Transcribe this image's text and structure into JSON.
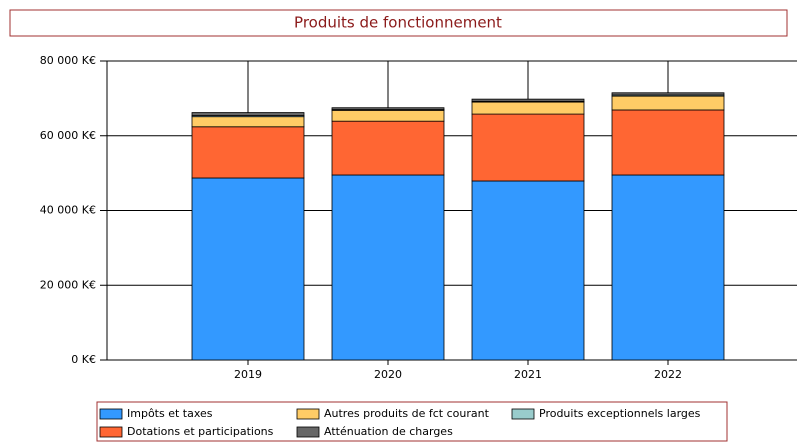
{
  "chart_data": {
    "type": "stacked_bar",
    "title": "Produits de fonctionnement",
    "categories": [
      "2019",
      "2020",
      "2021",
      "2022"
    ],
    "series": [
      {
        "name": "Impôts et taxes",
        "color": "#3399ff",
        "values": [
          48700,
          49500,
          47900,
          49500
        ]
      },
      {
        "name": "Dotations et participations",
        "color": "#ff6633",
        "values": [
          13700,
          14400,
          17900,
          17400
        ]
      },
      {
        "name": "Autres produits de fct courant",
        "color": "#ffcc66",
        "values": [
          2700,
          2900,
          3200,
          3700
        ]
      },
      {
        "name": "Produits exceptionnels larges",
        "color": "#99cccc",
        "values": [
          300,
          200,
          200,
          300
        ]
      },
      {
        "name": "Atténuation de charges",
        "color": "#666666",
        "values": [
          800,
          500,
          600,
          600
        ]
      }
    ],
    "ylim": [
      0,
      80000
    ],
    "yticks": [
      {
        "value": 0,
        "label": "0 K€"
      },
      {
        "value": 20000,
        "label": "20 000 K€"
      },
      {
        "value": 40000,
        "label": "40 000 K€"
      },
      {
        "value": 60000,
        "label": "60 000 K€"
      },
      {
        "value": 80000,
        "label": "80 000 K€"
      }
    ],
    "grid": true
  }
}
